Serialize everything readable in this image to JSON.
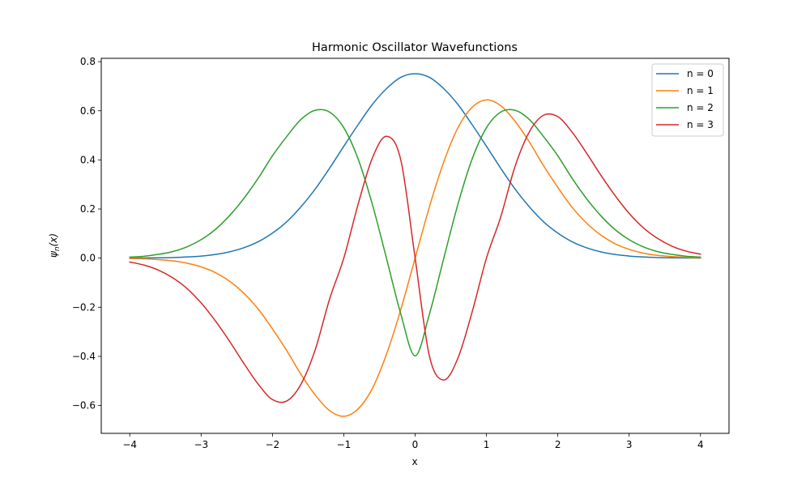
{
  "chart_data": {
    "type": "line",
    "title": "Harmonic Oscillator Wavefunctions",
    "xlabel": "x",
    "ylabel_main": "ψ",
    "ylabel_sub": "n",
    "ylabel_arg": "(x)",
    "xlim": [
      -4.4,
      4.4
    ],
    "ylim": [
      -0.7136,
      0.8136
    ],
    "x_ticks": [
      -4,
      -3,
      -2,
      -1,
      0,
      1,
      2,
      3,
      4
    ],
    "x_tick_labels": [
      "−4",
      "−3",
      "−2",
      "−1",
      "0",
      "1",
      "2",
      "3",
      "4"
    ],
    "y_ticks": [
      -0.6,
      -0.4,
      -0.2,
      0.0,
      0.2,
      0.4,
      0.6,
      0.8
    ],
    "y_tick_labels": [
      "−0.6",
      "−0.4",
      "−0.2",
      "0.0",
      "0.2",
      "0.4",
      "0.6",
      "0.8"
    ],
    "grid": false,
    "legend_position": "top-right",
    "x": [
      -4.0,
      -3.8,
      -3.6,
      -3.4,
      -3.2,
      -3.0,
      -2.8,
      -2.6,
      -2.4,
      -2.2,
      -2.0,
      -1.8,
      -1.6,
      -1.4,
      -1.2,
      -1.0,
      -0.8,
      -0.6,
      -0.4,
      -0.2,
      0.0,
      0.2,
      0.4,
      0.6,
      0.8,
      1.0,
      1.2,
      1.4,
      1.6,
      1.8,
      2.0,
      2.2,
      2.4,
      2.6,
      2.8,
      3.0,
      3.2,
      3.4,
      3.6,
      3.8,
      4.0
    ],
    "series": [
      {
        "name": "n = 0",
        "color": "#1f77b4",
        "values": [
          0.0003,
          0.0005,
          0.0012,
          0.0023,
          0.0045,
          0.0084,
          0.0149,
          0.0257,
          0.0423,
          0.0666,
          0.1019,
          0.1479,
          0.2092,
          0.2815,
          0.3658,
          0.4555,
          0.5431,
          0.6256,
          0.6903,
          0.7362,
          0.7511,
          0.7362,
          0.6903,
          0.6256,
          0.5431,
          0.4555,
          0.3658,
          0.2815,
          0.2092,
          0.1479,
          0.1019,
          0.0666,
          0.0423,
          0.0257,
          0.0149,
          0.0084,
          0.0045,
          0.0023,
          0.0012,
          0.0005,
          0.0003
        ]
      },
      {
        "name": "n = 1",
        "color": "#ff7f0e",
        "values": [
          -0.0014,
          -0.0029,
          -0.0061,
          -0.0111,
          -0.0204,
          -0.0357,
          -0.059,
          -0.0944,
          -0.1436,
          -0.2072,
          -0.2882,
          -0.3765,
          -0.4734,
          -0.5575,
          -0.6207,
          -0.6443,
          -0.6144,
          -0.5309,
          -0.3905,
          -0.2082,
          0.0,
          0.2082,
          0.3905,
          0.5309,
          0.6144,
          0.6443,
          0.6207,
          0.5575,
          0.4734,
          0.3765,
          0.2882,
          0.2072,
          0.1436,
          0.0944,
          0.059,
          0.0357,
          0.0204,
          0.0111,
          0.0061,
          0.0029,
          0.0014
        ]
      },
      {
        "name": "n = 2",
        "color": "#2ca02c",
        "values": [
          0.0042,
          0.0076,
          0.0152,
          0.0265,
          0.0458,
          0.075,
          0.1168,
          0.1735,
          0.2434,
          0.3252,
          0.4168,
          0.4952,
          0.5648,
          0.602,
          0.5947,
          0.531,
          0.4044,
          0.2193,
          -0.0026,
          -0.2285,
          -0.398,
          -0.2285,
          -0.0026,
          0.2193,
          0.4044,
          0.531,
          0.5947,
          0.602,
          0.5648,
          0.4952,
          0.4168,
          0.3252,
          0.2434,
          0.1735,
          0.1168,
          0.075,
          0.0458,
          0.0265,
          0.0152,
          0.0076,
          0.0042
        ]
      },
      {
        "name": "n = 3",
        "color": "#d62728",
        "values": [
          -0.016,
          -0.0284,
          -0.0487,
          -0.08,
          -0.1232,
          -0.1823,
          -0.2559,
          -0.3392,
          -0.4291,
          -0.5133,
          -0.576,
          -0.5818,
          -0.5135,
          -0.3727,
          -0.1676,
          0.0,
          0.2185,
          0.4072,
          0.4962,
          0.3984,
          0.0,
          -0.3984,
          -0.4962,
          -0.4072,
          -0.2185,
          0.0,
          0.1676,
          0.3727,
          0.5135,
          0.5818,
          0.576,
          0.5133,
          0.4291,
          0.3392,
          0.2559,
          0.1823,
          0.1232,
          0.08,
          0.0487,
          0.0284,
          0.016
        ]
      }
    ]
  }
}
